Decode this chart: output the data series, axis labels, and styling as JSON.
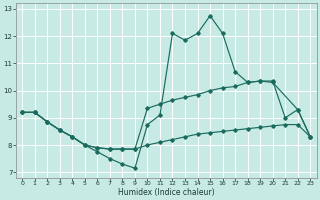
{
  "xlabel": "Humidex (Indice chaleur)",
  "bg_color": "#c8eae5",
  "line_color": "#1a6b5e",
  "grid_color": "#ffffff",
  "xlim": [
    -0.5,
    23.5
  ],
  "ylim": [
    6.8,
    13.2
  ],
  "yticks": [
    7,
    8,
    9,
    10,
    11,
    12,
    13
  ],
  "xticks": [
    0,
    1,
    2,
    3,
    4,
    5,
    6,
    7,
    8,
    9,
    10,
    11,
    12,
    13,
    14,
    15,
    16,
    17,
    18,
    19,
    20,
    21,
    22,
    23
  ],
  "line1_x": [
    0,
    1,
    2,
    3,
    4,
    5,
    6,
    7,
    8,
    9,
    10,
    11,
    12,
    13,
    14,
    15,
    16,
    17,
    18,
    19,
    20,
    22,
    23
  ],
  "line1_y": [
    9.2,
    9.2,
    8.85,
    8.55,
    8.3,
    8.0,
    7.75,
    7.5,
    7.3,
    7.15,
    8.75,
    9.1,
    12.1,
    11.85,
    12.1,
    12.75,
    12.1,
    10.7,
    10.3,
    10.35,
    10.3,
    9.3,
    8.3
  ],
  "line2_x": [
    0,
    1,
    2,
    3,
    4,
    5,
    6,
    7,
    8,
    9,
    10,
    11,
    12,
    13,
    14,
    15,
    16,
    17,
    18,
    19,
    20,
    21,
    22,
    23
  ],
  "line2_y": [
    9.2,
    9.2,
    8.85,
    8.55,
    8.3,
    8.0,
    7.9,
    7.85,
    7.85,
    7.85,
    8.0,
    8.1,
    8.2,
    8.3,
    8.4,
    8.45,
    8.5,
    8.55,
    8.6,
    8.65,
    8.7,
    8.75,
    8.75,
    8.3
  ],
  "line3_x": [
    0,
    1,
    2,
    3,
    4,
    5,
    6,
    7,
    8,
    9,
    10,
    11,
    12,
    13,
    14,
    15,
    16,
    17,
    18,
    19,
    20,
    21,
    22,
    23
  ],
  "line3_y": [
    9.2,
    9.2,
    8.85,
    8.55,
    8.3,
    8.0,
    7.9,
    7.85,
    7.85,
    7.85,
    9.35,
    9.5,
    9.65,
    9.75,
    9.85,
    10.0,
    10.1,
    10.15,
    10.3,
    10.35,
    10.35,
    9.0,
    9.3,
    8.3
  ]
}
